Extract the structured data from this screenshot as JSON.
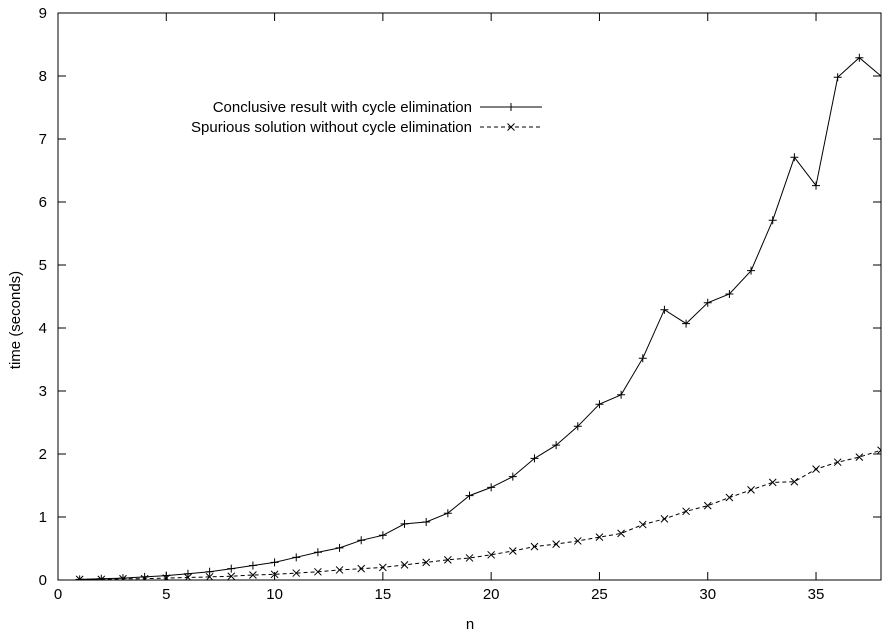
{
  "chart_data": {
    "type": "line",
    "title": "",
    "xlabel": "n",
    "ylabel": "time (seconds)",
    "xlim": [
      0,
      38
    ],
    "ylim": [
      0,
      9
    ],
    "xticks": [
      0,
      5,
      10,
      15,
      20,
      25,
      30,
      35
    ],
    "yticks": [
      0,
      1,
      2,
      3,
      4,
      5,
      6,
      7,
      8,
      9
    ],
    "grid": false,
    "legend_position": "top-center",
    "x": [
      1,
      2,
      3,
      4,
      5,
      6,
      7,
      8,
      9,
      10,
      11,
      12,
      13,
      14,
      15,
      16,
      17,
      18,
      19,
      20,
      21,
      22,
      23,
      24,
      25,
      26,
      27,
      28,
      29,
      30,
      31,
      32,
      33,
      34,
      35,
      36,
      37,
      38
    ],
    "series": [
      {
        "name": "Conclusive result with cycle elimination",
        "style": "solid",
        "marker": "plus",
        "values": [
          0.01,
          0.02,
          0.03,
          0.05,
          0.07,
          0.1,
          0.13,
          0.18,
          0.23,
          0.28,
          0.36,
          0.44,
          0.51,
          0.63,
          0.71,
          0.89,
          0.92,
          1.06,
          1.34,
          1.47,
          1.64,
          1.93,
          2.14,
          2.44,
          2.79,
          2.94,
          3.52,
          4.29,
          4.07,
          4.4,
          4.54,
          4.91,
          5.71,
          6.71,
          6.26,
          7.98,
          8.29,
          8.0
        ]
      },
      {
        "name": "Spurious solution without cycle elimination",
        "style": "dashed",
        "marker": "x",
        "values": [
          0.01,
          0.01,
          0.02,
          0.02,
          0.03,
          0.04,
          0.05,
          0.06,
          0.08,
          0.09,
          0.11,
          0.13,
          0.16,
          0.18,
          0.2,
          0.24,
          0.28,
          0.32,
          0.35,
          0.4,
          0.46,
          0.53,
          0.57,
          0.62,
          0.68,
          0.74,
          0.88,
          0.97,
          1.09,
          1.18,
          1.31,
          1.43,
          1.55,
          1.56,
          1.76,
          1.87,
          1.95,
          2.06
        ]
      }
    ]
  }
}
